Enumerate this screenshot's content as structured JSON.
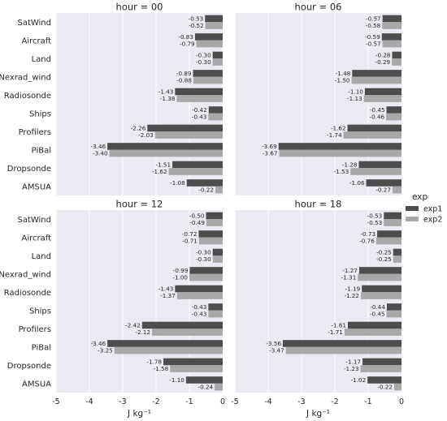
{
  "chart_data": {
    "type": "bar",
    "orientation": "horizontal",
    "categories": [
      "SatWind",
      "Aircraft",
      "Land",
      "Nexrad_wind",
      "Radiosonde",
      "Ships",
      "Profilers",
      "PiBal",
      "Dropsonde",
      "AMSUA"
    ],
    "xlabel": "J kg⁻¹",
    "xlim": [
      -5,
      0
    ],
    "xticks": [
      "-5",
      "-4",
      "-3",
      "-2",
      "-1",
      "0"
    ],
    "grid": true,
    "legend": {
      "title": "exp",
      "placement": "right",
      "entries": [
        {
          "name": "exp1",
          "color": "#4d4d4d"
        },
        {
          "name": "exp2",
          "color": "#a8a8a8"
        }
      ]
    },
    "panels": [
      {
        "title": "hour = 00",
        "series": [
          {
            "name": "exp1",
            "values": [
              -0.53,
              -0.83,
              -0.3,
              -0.89,
              -1.43,
              -0.42,
              -2.26,
              -3.46,
              -1.51,
              -1.08
            ],
            "labels": [
              "-0.53",
              "-0.83",
              "-0.30",
              "-0.89",
              "-1.43",
              "-0.42",
              "-2.26",
              "-3.46",
              "-1.51",
              "-1.08"
            ]
          },
          {
            "name": "exp2",
            "values": [
              -0.52,
              -0.79,
              -0.3,
              -0.88,
              -1.38,
              -0.43,
              -2.03,
              -3.4,
              -1.62,
              -0.22
            ],
            "labels": [
              "-0.52",
              "-0.79",
              "-0.30",
              "-0.88",
              "-1.38",
              "-0.43",
              "-2.03",
              "-3.40",
              "-1.62",
              "-0.22"
            ]
          }
        ]
      },
      {
        "title": "hour = 06",
        "series": [
          {
            "name": "exp1",
            "values": [
              -0.57,
              -0.59,
              -0.28,
              -1.48,
              -1.1,
              -0.45,
              -1.62,
              -3.69,
              -1.28,
              -1.06
            ],
            "labels": [
              "-0.57",
              "-0.59",
              "-0.28",
              "-1.48",
              "-1.10",
              "-0.45",
              "-1.62",
              "-3.69",
              "-1.28",
              "-1.06"
            ]
          },
          {
            "name": "exp2",
            "values": [
              -0.58,
              -0.57,
              -0.29,
              -1.5,
              -1.13,
              -0.46,
              -1.74,
              -3.67,
              -1.53,
              -0.27
            ],
            "labels": [
              "-0.58",
              "-0.57",
              "-0.29",
              "-1.50",
              "-1.13",
              "-0.46",
              "-1.74",
              "-3.67",
              "-1.53",
              "-0.27"
            ]
          }
        ]
      },
      {
        "title": "hour = 12",
        "series": [
          {
            "name": "exp1",
            "values": [
              -0.5,
              -0.72,
              -0.3,
              -0.99,
              -1.43,
              -0.43,
              -2.42,
              -3.46,
              -1.78,
              -1.1
            ],
            "labels": [
              "-0.50",
              "-0.72",
              "-0.30",
              "-0.99",
              "-1.43",
              "-0.43",
              "-2.42",
              "-3.46",
              "-1.78",
              "-1.10"
            ]
          },
          {
            "name": "exp2",
            "values": [
              -0.49,
              -0.71,
              -0.3,
              -1.0,
              -1.37,
              -0.43,
              -2.12,
              -3.25,
              -1.58,
              -0.24
            ],
            "labels": [
              "-0.49",
              "-0.71",
              "-0.30",
              "-1.00",
              "-1.37",
              "-0.43",
              "-2.12",
              "-3.25",
              "-1.58",
              "-0.24"
            ]
          }
        ]
      },
      {
        "title": "hour = 18",
        "series": [
          {
            "name": "exp1",
            "values": [
              -0.53,
              -0.73,
              -0.25,
              -1.27,
              -1.19,
              -0.44,
              -1.61,
              -3.56,
              -1.17,
              -1.02
            ],
            "labels": [
              "-0.53",
              "-0.73",
              "-0.25",
              "-1.27",
              "-1.19",
              "-0.44",
              "-1.61",
              "-3.56",
              "-1.17",
              "-1.02"
            ]
          },
          {
            "name": "exp2",
            "values": [
              -0.53,
              -0.76,
              -0.25,
              -1.31,
              -1.22,
              -0.45,
              -1.71,
              -3.47,
              -1.23,
              -0.22
            ],
            "labels": [
              "-0.53",
              "-0.76",
              "-0.25",
              "-1.31",
              "-1.22",
              "-0.45",
              "-1.71",
              "-3.47",
              "-1.23",
              "-0.22"
            ]
          }
        ]
      }
    ]
  }
}
